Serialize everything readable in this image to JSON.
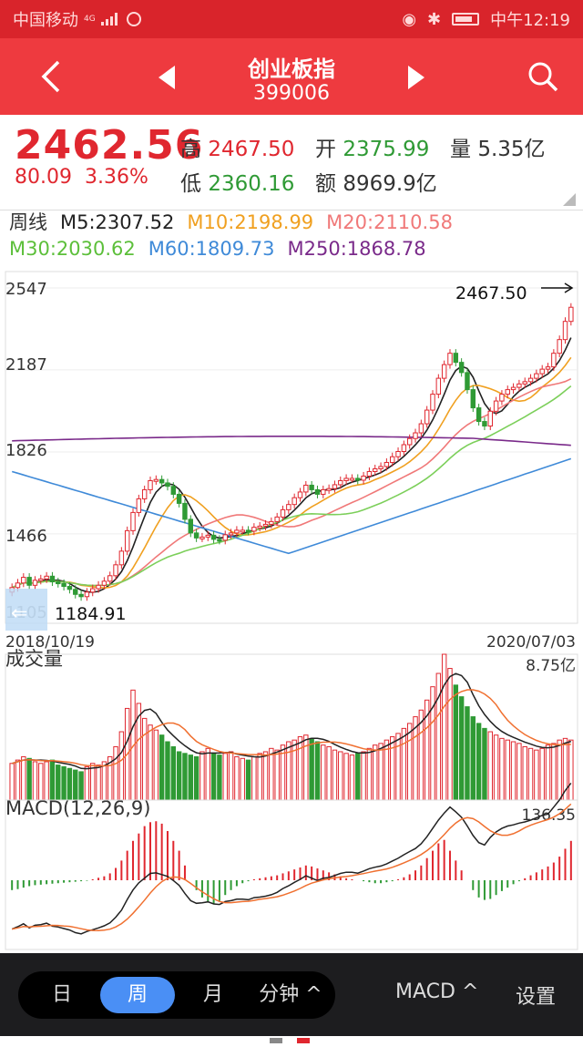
{
  "status_bar": {
    "carrier": "中国移动",
    "network": "4G",
    "time": "中午12:19"
  },
  "header": {
    "title": "创业板指",
    "code": "399006"
  },
  "quote": {
    "price": "2462.56",
    "change": "80.09",
    "change_pct": "3.36%",
    "high_label": "高",
    "high": "2467.50",
    "open_label": "开",
    "open": "2375.99",
    "volume_label": "量",
    "volume": "5.35亿",
    "low_label": "低",
    "low": "2360.16",
    "amount_label": "额",
    "amount": "8969.9亿"
  },
  "ma": {
    "period": "周线",
    "m5": "M5:2307.52",
    "m10": "M10:2198.99",
    "m20": "M20:2110.58",
    "m30": "M30:2030.62",
    "m60": "M60:1809.73",
    "m250": "M250:1868.78",
    "colors": {
      "m5": "#222222",
      "m10": "#f0a020",
      "m20": "#f07878",
      "m30": "#7ccf5a",
      "m60": "#3f8ad8",
      "m250": "#7a2a8a"
    }
  },
  "chart_data": {
    "type": "candlestick",
    "price_axis_labels": [
      "2547",
      "2187",
      "1826",
      "1466",
      "1105"
    ],
    "max_marker": "2467.50",
    "min_marker": "1184.91",
    "date_start": "2018/10/19",
    "date_end": "2020/07/03",
    "volume": {
      "title": "成交量",
      "max_label": "8.75亿"
    },
    "macd": {
      "title": "MACD(12,26,9)",
      "max_label": "136.35"
    },
    "close": [
      1230,
      1250,
      1275,
      1240,
      1262,
      1268,
      1280,
      1255,
      1248,
      1235,
      1222,
      1200,
      1190,
      1210,
      1225,
      1240,
      1258,
      1282,
      1330,
      1390,
      1480,
      1560,
      1620,
      1660,
      1700,
      1705,
      1690,
      1675,
      1640,
      1600,
      1530,
      1470,
      1448,
      1452,
      1460,
      1442,
      1438,
      1462,
      1470,
      1482,
      1482,
      1478,
      1495,
      1500,
      1508,
      1520,
      1540,
      1572,
      1595,
      1625,
      1650,
      1680,
      1660,
      1640,
      1660,
      1665,
      1682,
      1700,
      1710,
      1710,
      1702,
      1720,
      1740,
      1752,
      1762,
      1780,
      1805,
      1828,
      1858,
      1885,
      1910,
      1950,
      2010,
      2080,
      2150,
      2210,
      2260,
      2220,
      2175,
      2100,
      2020,
      1960,
      1940,
      2005,
      2050,
      2080,
      2100,
      2110,
      2125,
      2135,
      2150,
      2170,
      2190,
      2200,
      2260,
      2320,
      2400,
      2462
    ],
    "volume_values": [
      2.2,
      2.4,
      2.6,
      2.5,
      2.3,
      2.2,
      2.3,
      2.4,
      2.1,
      2.0,
      1.9,
      1.8,
      1.7,
      2.0,
      2.2,
      2.1,
      2.3,
      2.6,
      3.2,
      4.1,
      5.5,
      6.6,
      5.8,
      4.9,
      4.5,
      4.2,
      3.9,
      3.5,
      3.2,
      2.9,
      2.8,
      2.7,
      2.6,
      2.9,
      3.1,
      2.8,
      2.7,
      2.8,
      2.9,
      2.6,
      2.5,
      2.4,
      2.6,
      2.8,
      2.9,
      3.1,
      3.0,
      3.3,
      3.5,
      3.6,
      3.8,
      3.9,
      3.7,
      3.5,
      3.3,
      3.2,
      3.0,
      2.9,
      2.8,
      2.7,
      2.8,
      2.9,
      3.1,
      3.3,
      3.4,
      3.6,
      3.8,
      4.0,
      4.3,
      4.6,
      5.0,
      5.4,
      6.0,
      6.8,
      7.6,
      8.75,
      7.9,
      6.9,
      6.2,
      5.6,
      5.0,
      4.6,
      4.3,
      4.1,
      3.9,
      3.7,
      3.6,
      3.5,
      3.4,
      3.2,
      3.1,
      3.0,
      3.1,
      3.3,
      3.4,
      3.6,
      3.7,
      3.6
    ],
    "macd_values": [
      -20,
      -18,
      -15,
      -12,
      -10,
      -9,
      -8,
      -7,
      -6,
      -5,
      -4,
      -3,
      -2,
      -1,
      2,
      5,
      8,
      14,
      25,
      40,
      60,
      80,
      95,
      110,
      118,
      120,
      115,
      100,
      80,
      60,
      30,
      0,
      -20,
      -35,
      -45,
      -48,
      -42,
      -30,
      -20,
      -12,
      -6,
      -2,
      2,
      4,
      6,
      8,
      10,
      14,
      18,
      22,
      26,
      30,
      28,
      24,
      20,
      16,
      12,
      8,
      4,
      2,
      0,
      -2,
      -4,
      -6,
      -6,
      -4,
      -2,
      2,
      6,
      12,
      20,
      30,
      45,
      60,
      75,
      82,
      60,
      40,
      20,
      0,
      -20,
      -35,
      -40,
      -38,
      -30,
      -22,
      -15,
      -8,
      -2,
      4,
      10,
      16,
      22,
      28,
      36,
      48,
      64,
      80
    ]
  },
  "bottom_bar": {
    "tabs": [
      "日",
      "周",
      "月",
      "分钟 ^"
    ],
    "active_tab": "周",
    "indicator": "MACD ^",
    "settings": "设置"
  }
}
